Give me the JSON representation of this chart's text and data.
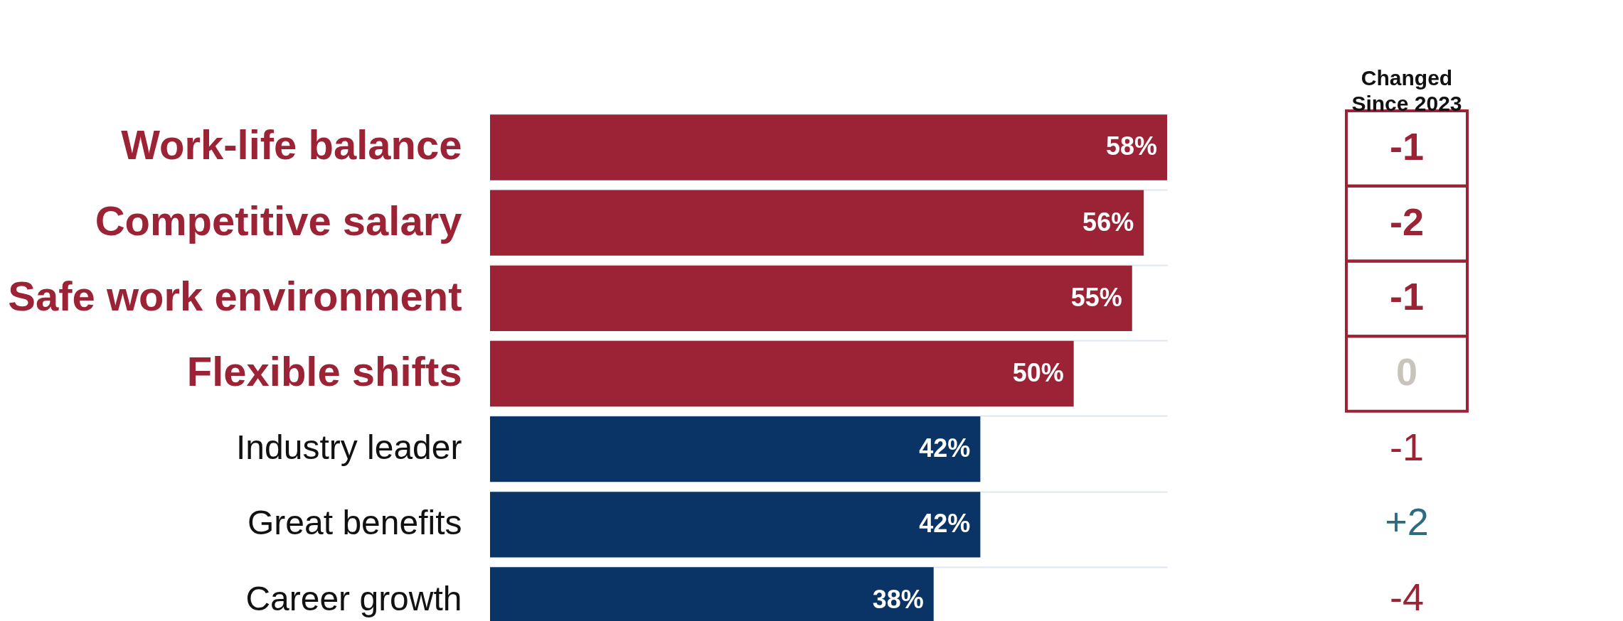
{
  "chart_data": [
    {
      "type": "bar",
      "orientation": "horizontal",
      "categories": [
        "Work-life balance",
        "Competitive salary",
        "Safe work environment",
        "Flexible shifts",
        "Industry leader",
        "Great benefits",
        "Career growth"
      ],
      "values": [
        58,
        56,
        55,
        50,
        42,
        42,
        38
      ],
      "colors": [
        "#9b2335",
        "#9b2335",
        "#9b2335",
        "#9b2335",
        "#0a3366",
        "#0a3366",
        "#0a3366"
      ],
      "value_labels": [
        "58%",
        "56%",
        "55%",
        "50%",
        "42%",
        "42%",
        "38%"
      ],
      "grid": true
    },
    {
      "type": "other",
      "title": "Changed Since 2023",
      "categories": [
        null,
        null,
        null,
        null,
        null,
        null,
        null
      ],
      "values": [
        -1,
        -2,
        -1,
        0,
        -1,
        2,
        -4
      ],
      "value_labels": [
        "-1",
        "-2",
        "-1",
        "0",
        "-1",
        "+2",
        "-4"
      ],
      "colors": [
        "#9b2335",
        "#9b2335",
        "#9b2335",
        "#c8c4bc",
        "#9b2335",
        "#2e6b7f",
        "#9b2335"
      ]
    }
  ]
}
